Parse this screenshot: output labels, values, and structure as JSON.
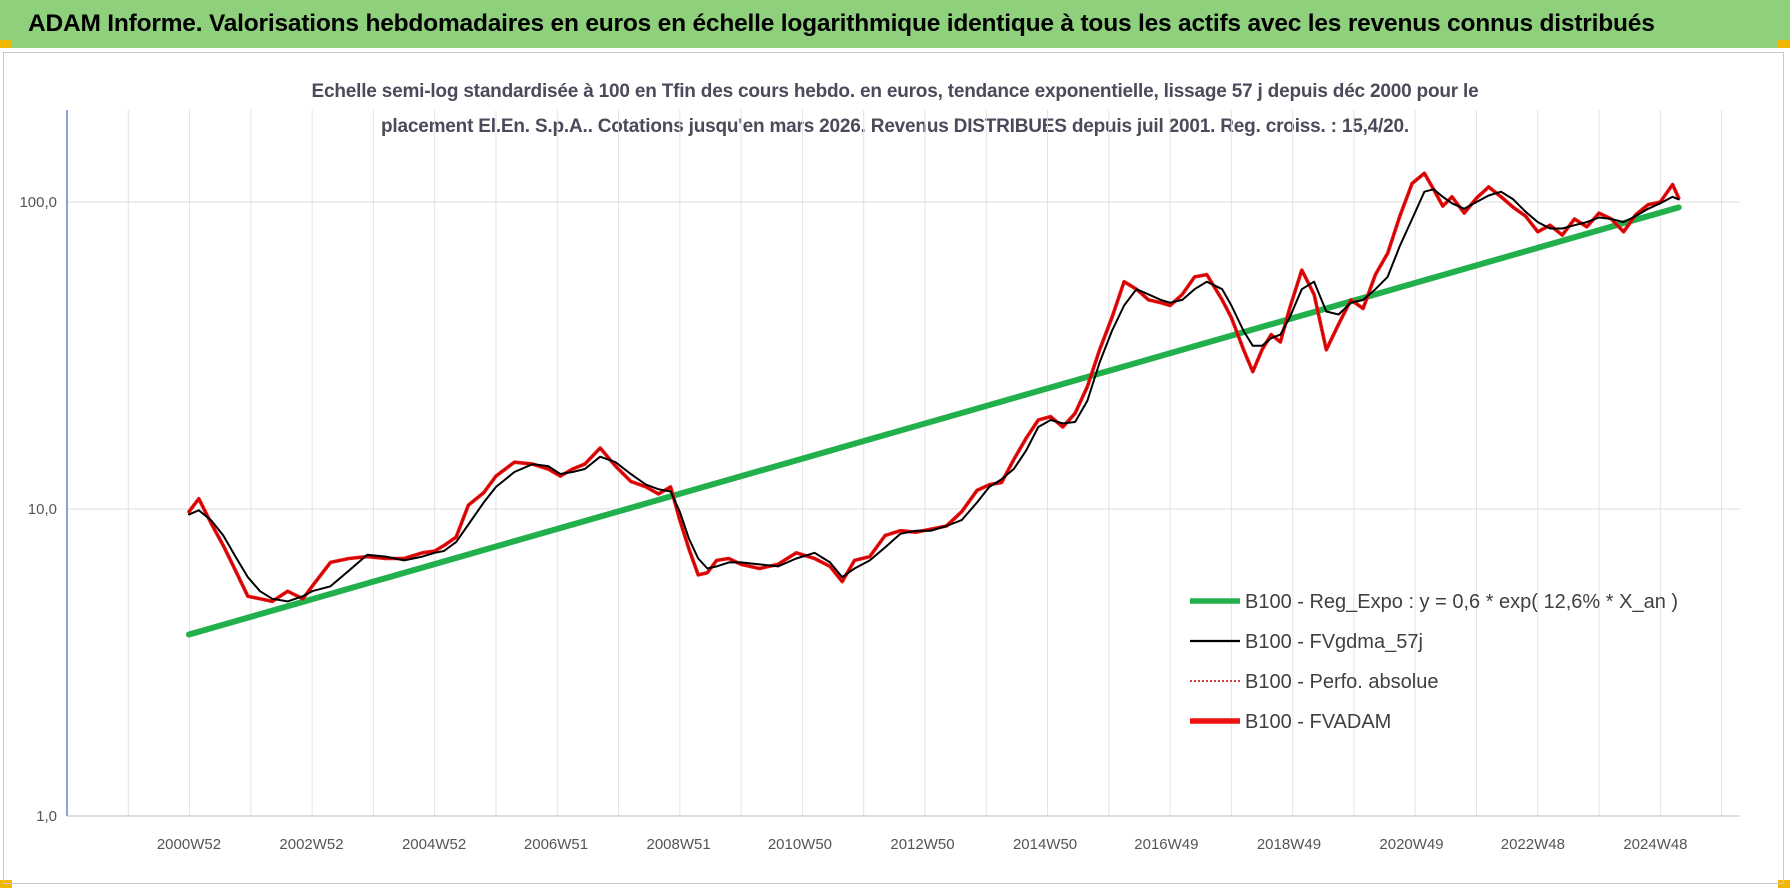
{
  "header": {
    "title": "ADAM Informe. Valorisations hebdomadaires en euros en échelle logarithmique identique à tous les actifs avec les revenus connus distribués"
  },
  "colors": {
    "header_bg": "#8fd07c",
    "corner_marker": "#f2b705",
    "regression": "#22b04c",
    "smoothed": "#000000",
    "absolute_perf": "#c00000",
    "fvadam": "#ee1111"
  },
  "chart_data": {
    "type": "line",
    "subtitle_line1": "Echelle semi-log standardisée à 100 en Tfin des cours hebdo. en euros, tendance exponentielle, lissage 57 j depuis déc 2000 pour le",
    "subtitle_line2": "placement El.En. S.p.A.. Cotations jusqu'en mars 2026. Revenus DISTRIBUES depuis juil 2001. Reg. croiss. : 15,4/20.",
    "y_scale": "log",
    "ylim": [
      1,
      180
    ],
    "y_ticks": [
      {
        "value": 1,
        "label": "1,0"
      },
      {
        "value": 10,
        "label": "10,0"
      },
      {
        "value": 100,
        "label": "100,0"
      }
    ],
    "x_range": [
      1999.0,
      2026.3
    ],
    "x_ticks": [
      {
        "value": 2000.99,
        "label": "2000W52"
      },
      {
        "value": 2002.99,
        "label": "2002W52"
      },
      {
        "value": 2004.99,
        "label": "2004W52"
      },
      {
        "value": 2006.98,
        "label": "2006W51"
      },
      {
        "value": 2008.98,
        "label": "2008W51"
      },
      {
        "value": 2010.96,
        "label": "2010W50"
      },
      {
        "value": 2012.96,
        "label": "2012W50"
      },
      {
        "value": 2014.96,
        "label": "2014W50"
      },
      {
        "value": 2016.94,
        "label": "2016W49"
      },
      {
        "value": 2018.94,
        "label": "2018W49"
      },
      {
        "value": 2020.94,
        "label": "2020W49"
      },
      {
        "value": 2022.92,
        "label": "2022W48"
      },
      {
        "value": 2024.92,
        "label": "2024W48"
      }
    ],
    "x_gridlines": [
      1999.0,
      2000.0,
      2001.0,
      2002.0,
      2003.0,
      2004.0,
      2005.0,
      2006.0,
      2007.0,
      2008.0,
      2009.0,
      2010.0,
      2011.0,
      2012.0,
      2013.0,
      2014.0,
      2015.0,
      2016.0,
      2017.0,
      2018.0,
      2019.0,
      2020.0,
      2021.0,
      2022.0,
      2023.0,
      2024.0,
      2025.0,
      2026.0
    ],
    "legend": {
      "position": "bottom-right",
      "entries": [
        {
          "key": "regression",
          "label": "B100 - Reg_Expo : y = 0,6 * exp( 12,6% *  X_an )",
          "style": "thick"
        },
        {
          "key": "smoothed",
          "label": "B100 - FVgdma_57j",
          "style": "thin"
        },
        {
          "key": "absolute",
          "label": "B100 - Perfo. absolue",
          "style": "dotted"
        },
        {
          "key": "fvadam",
          "label": "B100 - FVADAM",
          "style": "thick"
        }
      ]
    },
    "series": [
      {
        "key": "regression",
        "name": "B100 - Reg_Expo : y = 0,6 * exp( 12,6% *  X_an )",
        "x": [
          2000.99,
          2025.3
        ],
        "y": [
          3.9,
          96
        ]
      },
      {
        "key": "smoothed",
        "name": "B100 - FVgdma_57j",
        "x": [
          2000.99,
          2001.15,
          2001.35,
          2001.55,
          2001.75,
          2001.95,
          2002.15,
          2002.35,
          2002.6,
          2002.85,
          2003.0,
          2003.3,
          2003.6,
          2003.9,
          2004.2,
          2004.5,
          2004.8,
          2005.0,
          2005.15,
          2005.35,
          2005.55,
          2005.8,
          2006.0,
          2006.3,
          2006.6,
          2006.85,
          2007.05,
          2007.25,
          2007.45,
          2007.7,
          2007.95,
          2008.2,
          2008.45,
          2008.65,
          2008.85,
          2009.0,
          2009.15,
          2009.3,
          2009.45,
          2009.6,
          2009.8,
          2010.0,
          2010.3,
          2010.6,
          2010.9,
          2011.2,
          2011.45,
          2011.65,
          2011.85,
          2012.1,
          2012.35,
          2012.6,
          2012.85,
          2013.1,
          2013.35,
          2013.6,
          2013.85,
          2014.05,
          2014.25,
          2014.45,
          2014.65,
          2014.85,
          2015.05,
          2015.25,
          2015.45,
          2015.65,
          2015.85,
          2016.05,
          2016.25,
          2016.45,
          2016.65,
          2016.85,
          2017.0,
          2017.2,
          2017.4,
          2017.6,
          2017.85,
          2018.0,
          2018.2,
          2018.35,
          2018.5,
          2018.65,
          2018.8,
          2018.95,
          2019.15,
          2019.35,
          2019.55,
          2019.75,
          2019.95,
          2020.15,
          2020.35,
          2020.55,
          2020.75,
          2020.95,
          2021.15,
          2021.3,
          2021.45,
          2021.6,
          2021.8,
          2022.0,
          2022.2,
          2022.4,
          2022.6,
          2022.8,
          2023.0,
          2023.2,
          2023.4,
          2023.6,
          2023.8,
          2024.0,
          2024.2,
          2024.4,
          2024.6,
          2024.8,
          2025.0,
          2025.2,
          2025.3
        ],
        "y": [
          9.6,
          9.9,
          9.2,
          8.2,
          7.0,
          6.0,
          5.4,
          5.1,
          5.0,
          5.2,
          5.4,
          5.6,
          6.3,
          7.1,
          7.0,
          6.8,
          7.0,
          7.2,
          7.3,
          7.8,
          8.9,
          10.5,
          11.8,
          13.2,
          14.0,
          13.8,
          13.0,
          13.2,
          13.5,
          14.8,
          14.2,
          13.0,
          12.0,
          11.6,
          11.4,
          9.8,
          8.0,
          6.9,
          6.4,
          6.5,
          6.7,
          6.7,
          6.6,
          6.5,
          6.9,
          7.2,
          6.7,
          6.0,
          6.4,
          6.8,
          7.5,
          8.3,
          8.5,
          8.5,
          8.8,
          9.2,
          10.5,
          11.8,
          12.5,
          13.5,
          15.5,
          18.5,
          19.5,
          19.0,
          19.2,
          22.5,
          30.0,
          38.0,
          46.0,
          52.0,
          50.0,
          48.0,
          47.0,
          48.0,
          52.0,
          55.0,
          52.0,
          46.0,
          38.0,
          34.0,
          34.0,
          36.0,
          37.0,
          42.0,
          52.0,
          55.0,
          44.0,
          43.0,
          47.0,
          48.0,
          52.0,
          57.0,
          72.0,
          88.0,
          108.0,
          110.0,
          104.0,
          99.0,
          95.0,
          100.0,
          105.0,
          108.0,
          102.0,
          93.0,
          86.0,
          82.0,
          82.0,
          84.0,
          86.0,
          89.0,
          88.0,
          86.0,
          90.0,
          95.0,
          99.0,
          104.0,
          102.0
        ]
      },
      {
        "key": "absolute",
        "name": "B100 - Perfo. absolue",
        "x": [
          2000.99,
          2001.15,
          2001.35,
          2001.55,
          2001.75,
          2001.95,
          2002.15,
          2002.35,
          2002.6,
          2002.85,
          2003.0,
          2003.3,
          2003.6,
          2003.9,
          2004.2,
          2004.5,
          2004.8,
          2005.0,
          2005.15,
          2005.35,
          2005.55,
          2005.8,
          2006.0,
          2006.3,
          2006.6,
          2006.85,
          2007.05,
          2007.25,
          2007.45,
          2007.7,
          2007.95,
          2008.2,
          2008.45,
          2008.65,
          2008.85,
          2009.0,
          2009.15,
          2009.3,
          2009.45,
          2009.6,
          2009.8,
          2010.0,
          2010.3,
          2010.6,
          2010.9,
          2011.2,
          2011.45,
          2011.65,
          2011.85,
          2012.1,
          2012.35,
          2012.6,
          2012.85,
          2013.1,
          2013.35,
          2013.6,
          2013.85,
          2014.05,
          2014.25,
          2014.45,
          2014.65,
          2014.85,
          2015.05,
          2015.25,
          2015.45,
          2015.65,
          2015.85,
          2016.05,
          2016.25,
          2016.45,
          2016.65,
          2016.85,
          2017.0,
          2017.2,
          2017.4,
          2017.6,
          2017.85,
          2018.0,
          2018.2,
          2018.35,
          2018.5,
          2018.65,
          2018.8,
          2018.95,
          2019.15,
          2019.35,
          2019.55,
          2019.75,
          2019.95,
          2020.15,
          2020.35,
          2020.55,
          2020.75,
          2020.95,
          2021.15,
          2021.3,
          2021.45,
          2021.6,
          2021.8,
          2022.0,
          2022.2,
          2022.4,
          2022.6,
          2022.8,
          2023.0,
          2023.2,
          2023.4,
          2023.6,
          2023.8,
          2024.0,
          2024.2,
          2024.4,
          2024.6,
          2024.8,
          2025.0,
          2025.2,
          2025.3
        ],
        "y": [
          9.8,
          10.8,
          9.0,
          7.6,
          6.3,
          5.2,
          5.1,
          5.0,
          5.4,
          5.1,
          5.6,
          6.7,
          6.9,
          7.0,
          6.9,
          6.9,
          7.2,
          7.3,
          7.6,
          8.1,
          10.3,
          11.3,
          12.8,
          14.2,
          14.0,
          13.5,
          12.8,
          13.5,
          14.0,
          15.8,
          13.8,
          12.3,
          11.8,
          11.2,
          11.8,
          9.2,
          7.4,
          6.1,
          6.2,
          6.8,
          6.9,
          6.6,
          6.4,
          6.6,
          7.2,
          6.9,
          6.5,
          5.8,
          6.8,
          7.0,
          8.2,
          8.5,
          8.4,
          8.6,
          8.8,
          9.8,
          11.5,
          12.0,
          12.2,
          14.5,
          17.0,
          19.5,
          20.0,
          18.5,
          20.5,
          25.0,
          33.0,
          42.0,
          55.0,
          52.0,
          48.0,
          47.0,
          46.0,
          50.0,
          57.0,
          58.0,
          48.0,
          42.0,
          33.0,
          28.0,
          33.0,
          37.0,
          35.0,
          45.0,
          60.0,
          50.0,
          33.0,
          40.0,
          48.0,
          45.0,
          58.0,
          68.0,
          90.0,
          115.0,
          124.0,
          110.0,
          97.0,
          104.0,
          92.0,
          103.0,
          112.0,
          104.0,
          96.0,
          90.0,
          80.0,
          84.0,
          78.0,
          88.0,
          83.0,
          92.0,
          88.0,
          80.0,
          91.0,
          98.0,
          100.0,
          114.0,
          103.0
        ]
      },
      {
        "key": "fvadam",
        "name": "B100 - FVADAM",
        "x": [
          2000.99,
          2001.15,
          2001.35,
          2001.55,
          2001.75,
          2001.95,
          2002.15,
          2002.35,
          2002.6,
          2002.85,
          2003.0,
          2003.3,
          2003.6,
          2003.9,
          2004.2,
          2004.5,
          2004.8,
          2005.0,
          2005.15,
          2005.35,
          2005.55,
          2005.8,
          2006.0,
          2006.3,
          2006.6,
          2006.85,
          2007.05,
          2007.25,
          2007.45,
          2007.7,
          2007.95,
          2008.2,
          2008.45,
          2008.65,
          2008.85,
          2009.0,
          2009.15,
          2009.3,
          2009.45,
          2009.6,
          2009.8,
          2010.0,
          2010.3,
          2010.6,
          2010.9,
          2011.2,
          2011.45,
          2011.65,
          2011.85,
          2012.1,
          2012.35,
          2012.6,
          2012.85,
          2013.1,
          2013.35,
          2013.6,
          2013.85,
          2014.05,
          2014.25,
          2014.45,
          2014.65,
          2014.85,
          2015.05,
          2015.25,
          2015.45,
          2015.65,
          2015.85,
          2016.05,
          2016.25,
          2016.45,
          2016.65,
          2016.85,
          2017.0,
          2017.2,
          2017.4,
          2017.6,
          2017.85,
          2018.0,
          2018.2,
          2018.35,
          2018.5,
          2018.65,
          2018.8,
          2018.95,
          2019.15,
          2019.35,
          2019.55,
          2019.75,
          2019.95,
          2020.15,
          2020.35,
          2020.55,
          2020.75,
          2020.95,
          2021.15,
          2021.3,
          2021.45,
          2021.6,
          2021.8,
          2022.0,
          2022.2,
          2022.4,
          2022.6,
          2022.8,
          2023.0,
          2023.2,
          2023.4,
          2023.6,
          2023.8,
          2024.0,
          2024.2,
          2024.4,
          2024.6,
          2024.8,
          2025.0,
          2025.2,
          2025.3
        ],
        "y": [
          9.8,
          10.8,
          9.0,
          7.6,
          6.3,
          5.2,
          5.1,
          5.0,
          5.4,
          5.1,
          5.6,
          6.7,
          6.9,
          7.0,
          6.9,
          6.9,
          7.2,
          7.3,
          7.6,
          8.1,
          10.3,
          11.3,
          12.8,
          14.2,
          14.0,
          13.5,
          12.8,
          13.5,
          14.0,
          15.8,
          13.8,
          12.3,
          11.8,
          11.2,
          11.8,
          9.2,
          7.4,
          6.1,
          6.2,
          6.8,
          6.9,
          6.6,
          6.4,
          6.6,
          7.2,
          6.9,
          6.5,
          5.8,
          6.8,
          7.0,
          8.2,
          8.5,
          8.4,
          8.6,
          8.8,
          9.8,
          11.5,
          12.0,
          12.2,
          14.5,
          17.0,
          19.5,
          20.0,
          18.5,
          20.5,
          25.0,
          33.0,
          42.0,
          55.0,
          52.0,
          48.0,
          47.0,
          46.0,
          50.0,
          57.0,
          58.0,
          48.0,
          42.0,
          33.0,
          28.0,
          33.0,
          37.0,
          35.0,
          45.0,
          60.0,
          50.0,
          33.0,
          40.0,
          48.0,
          45.0,
          58.0,
          68.0,
          90.0,
          115.0,
          124.0,
          110.0,
          97.0,
          104.0,
          92.0,
          103.0,
          112.0,
          104.0,
          96.0,
          90.0,
          80.0,
          84.0,
          78.0,
          88.0,
          83.0,
          92.0,
          88.0,
          80.0,
          91.0,
          98.0,
          100.0,
          114.0,
          103.0
        ]
      }
    ]
  }
}
